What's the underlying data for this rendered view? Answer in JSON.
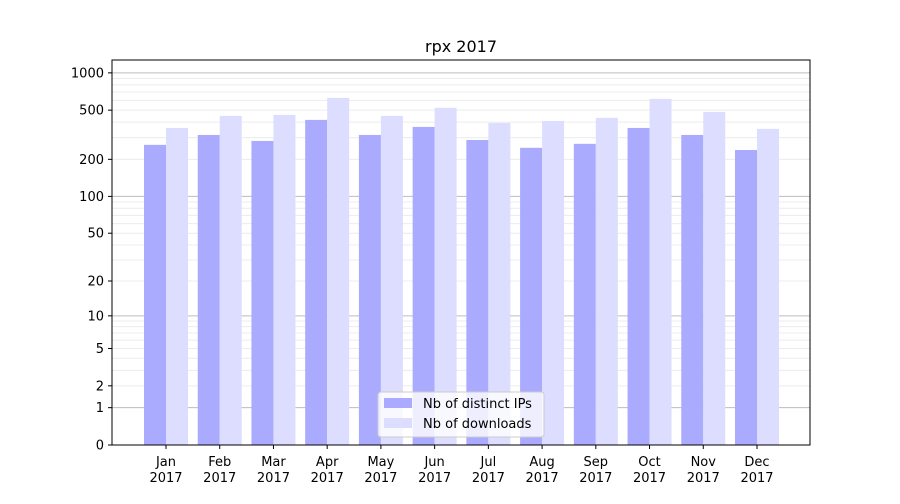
{
  "chart_data": {
    "type": "bar",
    "title": "rpx 2017",
    "xlabel": "",
    "ylabel": "",
    "yscale": "log(1+y)",
    "ylim": [
      0,
      1270
    ],
    "yticks": [
      0,
      1,
      2,
      5,
      10,
      20,
      50,
      100,
      200,
      500,
      1000
    ],
    "categories": [
      "Jan\n2017",
      "Feb\n2017",
      "Mar\n2017",
      "Apr\n2017",
      "May\n2017",
      "Jun\n2017",
      "Jul\n2017",
      "Aug\n2017",
      "Sep\n2017",
      "Oct\n2017",
      "Nov\n2017",
      "Dec\n2017"
    ],
    "series": [
      {
        "name": "Nb of distinct IPs",
        "color": "#aaaaff",
        "values": [
          262,
          315,
          282,
          417,
          315,
          366,
          287,
          248,
          267,
          359,
          315,
          238
        ]
      },
      {
        "name": "Nb of downloads",
        "color": "#ddddff",
        "values": [
          359,
          449,
          458,
          628,
          449,
          522,
          394,
          409,
          433,
          617,
          484,
          353
        ]
      }
    ],
    "grid": true,
    "legend_position": "lower-center"
  }
}
